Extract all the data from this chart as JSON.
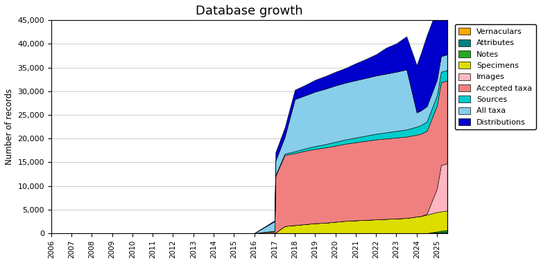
{
  "title": "Database growth",
  "ylabel": "Number of records",
  "ylim": [
    0,
    45000
  ],
  "yticks": [
    0,
    5000,
    10000,
    15000,
    20000,
    25000,
    30000,
    35000,
    40000,
    45000
  ],
  "background_color": "#ffffff",
  "legend_labels": [
    "Vernaculars",
    "Attributes",
    "Notes",
    "Specimens",
    "Images",
    "Accepted taxa",
    "Sources",
    "All taxa",
    "Distributions"
  ],
  "legend_colors": [
    "#FFA500",
    "#008080",
    "#22AA22",
    "#DDDD00",
    "#FFB6C1",
    "#F08080",
    "#00CCCC",
    "#87CEEB",
    "#0000CC"
  ],
  "years": [
    2006,
    2007,
    2008,
    2009,
    2010,
    2011,
    2012,
    2013,
    2014,
    2015,
    2016,
    2017.0,
    2017.05,
    2017.5,
    2018.0,
    2018.5,
    2019.0,
    2019.5,
    2020.0,
    2020.5,
    2021.0,
    2021.5,
    2022.0,
    2022.5,
    2023.0,
    2023.5,
    2024.0,
    2024.2,
    2024.5,
    2025.0,
    2025.2,
    2025.5
  ],
  "vernaculars": [
    0,
    0,
    0,
    0,
    0,
    0,
    0,
    0,
    0,
    0,
    0,
    0,
    0,
    0,
    0,
    0,
    0,
    0,
    0,
    0,
    0,
    0,
    0,
    0,
    0,
    0,
    0,
    0,
    0,
    50,
    50,
    50
  ],
  "attributes": [
    0,
    0,
    0,
    0,
    0,
    0,
    0,
    0,
    0,
    0,
    0,
    0,
    0,
    0,
    0,
    0,
    0,
    0,
    0,
    0,
    0,
    0,
    0,
    0,
    0,
    0,
    0,
    0,
    0,
    100,
    150,
    200
  ],
  "notes": [
    0,
    0,
    0,
    0,
    0,
    0,
    0,
    0,
    0,
    0,
    0,
    0,
    0,
    0,
    0,
    0,
    0,
    0,
    0,
    0,
    0,
    0,
    0,
    0,
    0,
    0,
    0,
    0,
    0,
    200,
    300,
    400
  ],
  "specimens": [
    0,
    0,
    0,
    0,
    0,
    0,
    0,
    0,
    0,
    0,
    0,
    100,
    100,
    1500,
    1700,
    1900,
    2100,
    2200,
    2400,
    2600,
    2700,
    2800,
    2900,
    3000,
    3100,
    3200,
    3500,
    3600,
    3900,
    4100,
    4100,
    4100
  ],
  "images": [
    0,
    0,
    0,
    0,
    0,
    0,
    0,
    0,
    0,
    0,
    0,
    0,
    0,
    0,
    0,
    0,
    0,
    0,
    0,
    0,
    0,
    0,
    0,
    0,
    0,
    0,
    0,
    0,
    200,
    5000,
    9800,
    10000
  ],
  "accepted_taxa": [
    0,
    0,
    0,
    0,
    0,
    0,
    0,
    0,
    0,
    0,
    0,
    300,
    12000,
    15000,
    15200,
    15500,
    15700,
    15900,
    16100,
    16300,
    16500,
    16700,
    16900,
    17000,
    17100,
    17200,
    17300,
    17400,
    17500,
    17500,
    17500,
    17500
  ],
  "sources": [
    0,
    0,
    0,
    0,
    0,
    0,
    0,
    0,
    0,
    0,
    0,
    100,
    200,
    300,
    400,
    500,
    600,
    700,
    800,
    900,
    1000,
    1100,
    1200,
    1300,
    1400,
    1500,
    1700,
    1800,
    2000,
    2200,
    2200,
    2200
  ],
  "all_taxa": [
    0,
    0,
    0,
    0,
    0,
    0,
    0,
    0,
    0,
    0,
    0,
    2000,
    3000,
    3500,
    11000,
    11200,
    11500,
    11700,
    11900,
    12000,
    12100,
    12200,
    12300,
    12400,
    12500,
    12700,
    3000,
    3100,
    3200,
    3300,
    3300,
    3300
  ],
  "distributions": [
    0,
    0,
    0,
    0,
    0,
    0,
    0,
    0,
    0,
    0,
    0,
    200,
    1800,
    2000,
    2000,
    2200,
    2500,
    2700,
    2900,
    3100,
    3600,
    4000,
    4500,
    5500,
    6000,
    7000,
    10000,
    12000,
    15000,
    15000,
    15000,
    15000
  ]
}
